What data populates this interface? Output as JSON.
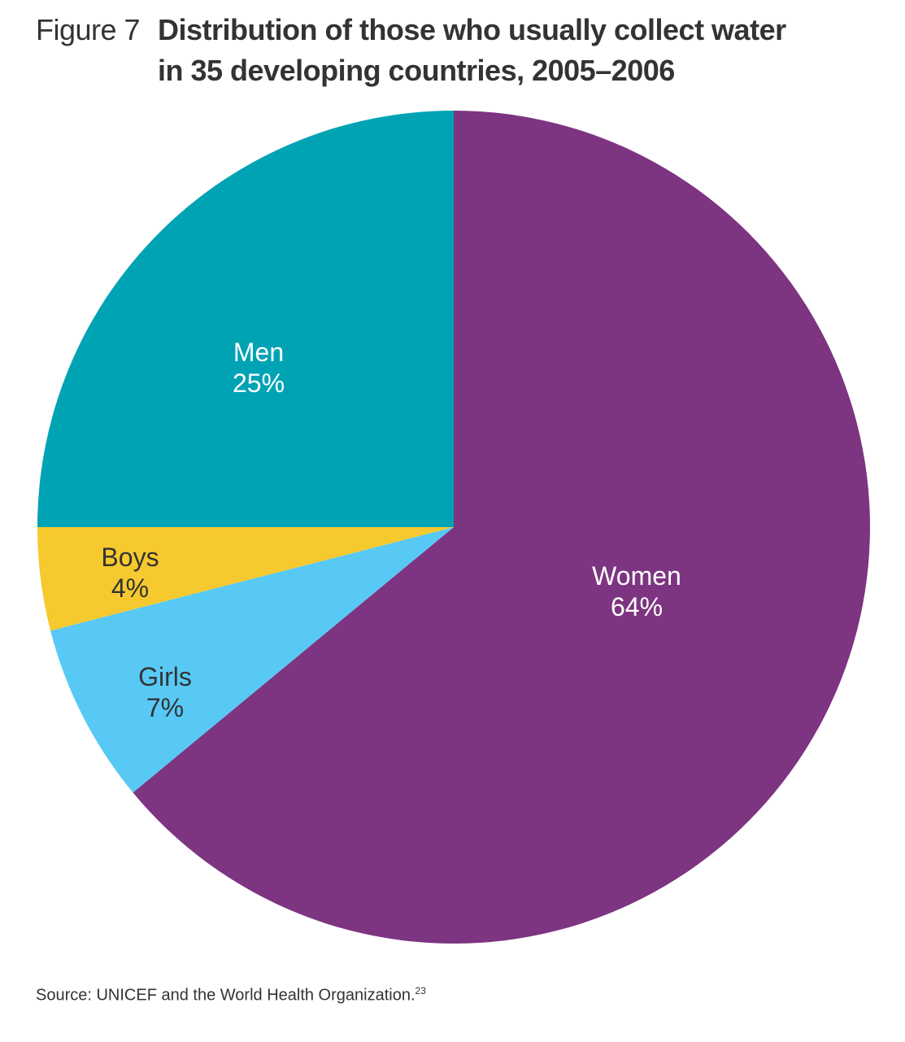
{
  "header": {
    "figure_label": "Figure 7",
    "title_line1": "Distribution of those who usually collect water",
    "title_line2": "in 35 developing countries, 2005–2006"
  },
  "chart_data": {
    "type": "pie",
    "title": "Distribution of those who usually collect water in 35 developing countries, 2005–2006",
    "start_angle_deg": 0,
    "direction": "clockwise",
    "slices": [
      {
        "label": "Women",
        "value": 64,
        "value_label": "64%",
        "color": "#7d3481",
        "label_color": "#ffffff"
      },
      {
        "label": "Girls",
        "value": 7,
        "value_label": "7%",
        "color": "#58c9f5",
        "label_color": "#333333"
      },
      {
        "label": "Boys",
        "value": 4,
        "value_label": "4%",
        "color": "#f6c92e",
        "label_color": "#333333"
      },
      {
        "label": "Men",
        "value": 25,
        "value_label": "25%",
        "color": "#00a3b4",
        "label_color": "#ffffff"
      }
    ]
  },
  "footer": {
    "source": "Source: UNICEF and the World Health Organization.",
    "footnote": "23"
  }
}
